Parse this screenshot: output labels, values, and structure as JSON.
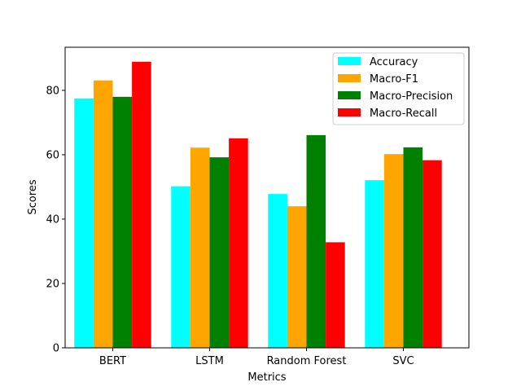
{
  "chart_data": {
    "type": "bar",
    "title": "",
    "xlabel": "Metrics",
    "ylabel": "Scores",
    "categories": [
      "BERT",
      "LSTM",
      "Random Forest",
      "SVC"
    ],
    "series": [
      {
        "name": "Accuracy",
        "color": "#00ffff",
        "values": [
          77.5,
          50.2,
          47.8,
          52.1
        ]
      },
      {
        "name": "Macro-F1",
        "color": "#ffa500",
        "values": [
          83.1,
          62.2,
          44.0,
          60.2
        ]
      },
      {
        "name": "Macro-Precision",
        "color": "#008000",
        "values": [
          78.0,
          59.2,
          66.1,
          62.3
        ]
      },
      {
        "name": "Macro-Recall",
        "color": "#ff0000",
        "values": [
          88.9,
          65.1,
          32.8,
          58.3
        ]
      }
    ],
    "ylim": [
      0,
      93.4
    ],
    "yticks": [
      0,
      20,
      40,
      60,
      80
    ],
    "grid": false,
    "legend_position": "top-right"
  }
}
